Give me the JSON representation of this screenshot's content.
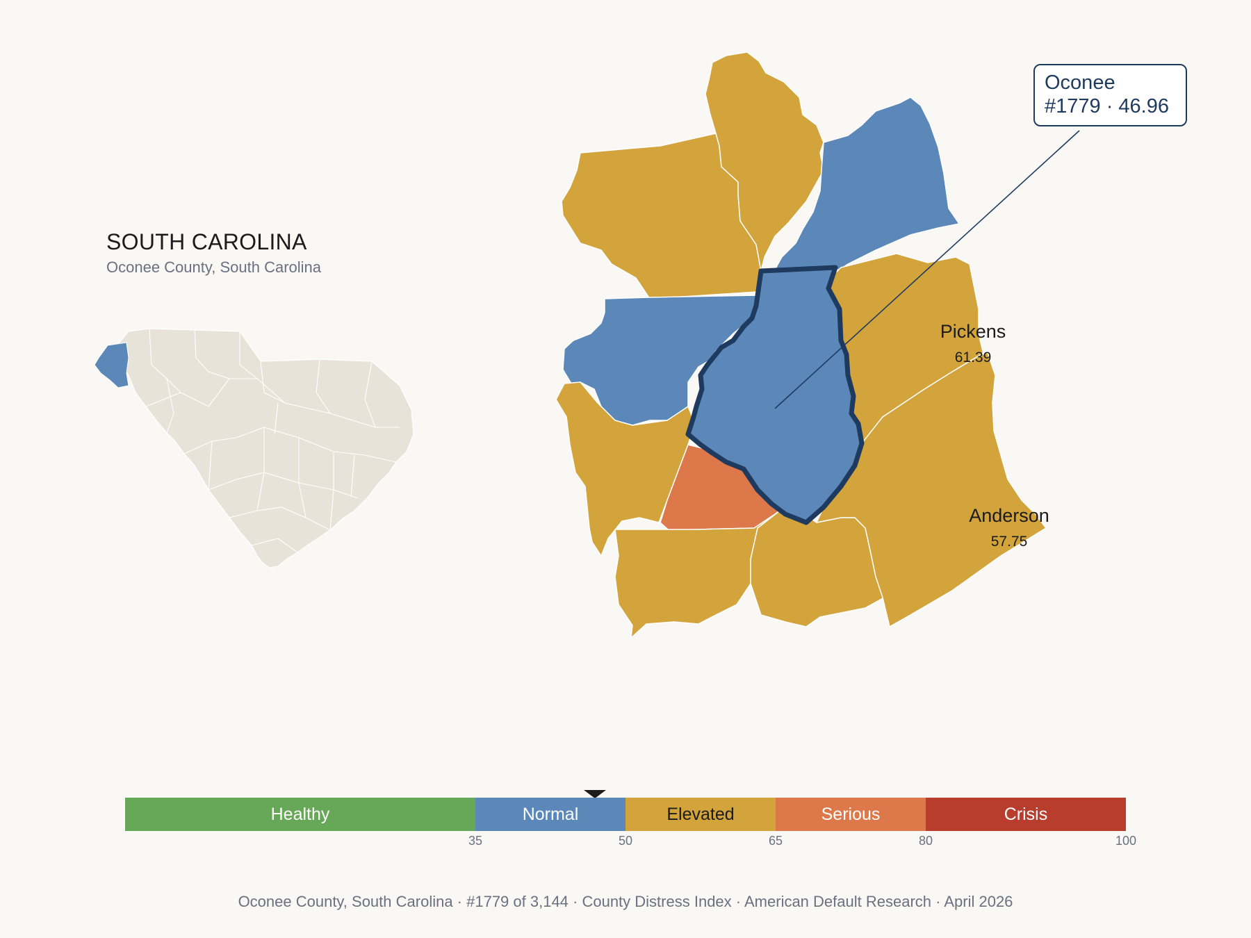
{
  "header": {
    "state": "SOUTH CAROLINA",
    "subtitle": "Oconee County, South Carolina"
  },
  "map": {
    "focus_county": "Oconee",
    "callout": {
      "name": "Oconee",
      "rank_value": "#1779 · 46.96"
    },
    "labeled_counties": [
      {
        "name": "Pickens",
        "value": "61.39"
      },
      {
        "name": "Anderson",
        "value": "57.75"
      }
    ],
    "colors": {
      "normal": "#5b88b8",
      "elevated": "#d2a43b",
      "serious": "#dc7849",
      "state_fill": "#e8e3d9",
      "outline": "#1f3a5f",
      "background": "#f9f8f5"
    }
  },
  "legend": {
    "segments": [
      {
        "label": "Healthy",
        "min": 0,
        "max": 35,
        "color": "#67a758",
        "text": "#ffffff"
      },
      {
        "label": "Normal",
        "min": 35,
        "max": 50,
        "color": "#5b88b8",
        "text": "#ffffff"
      },
      {
        "label": "Elevated",
        "min": 50,
        "max": 65,
        "color": "#d2a43b",
        "text": "#1b1b1b"
      },
      {
        "label": "Serious",
        "min": 65,
        "max": 80,
        "color": "#dc7849",
        "text": "#ffffff"
      },
      {
        "label": "Crisis",
        "min": 80,
        "max": 100,
        "color": "#b83d2c",
        "text": "#ffffff"
      }
    ],
    "ticks": [
      "35",
      "50",
      "65",
      "80",
      "100"
    ],
    "marker_value": 46.96
  },
  "footer": {
    "text": "Oconee County, South Carolina  ·  #1779 of 3,144  ·  County Distress Index  ·  American Default Research  ·  April 2026"
  }
}
